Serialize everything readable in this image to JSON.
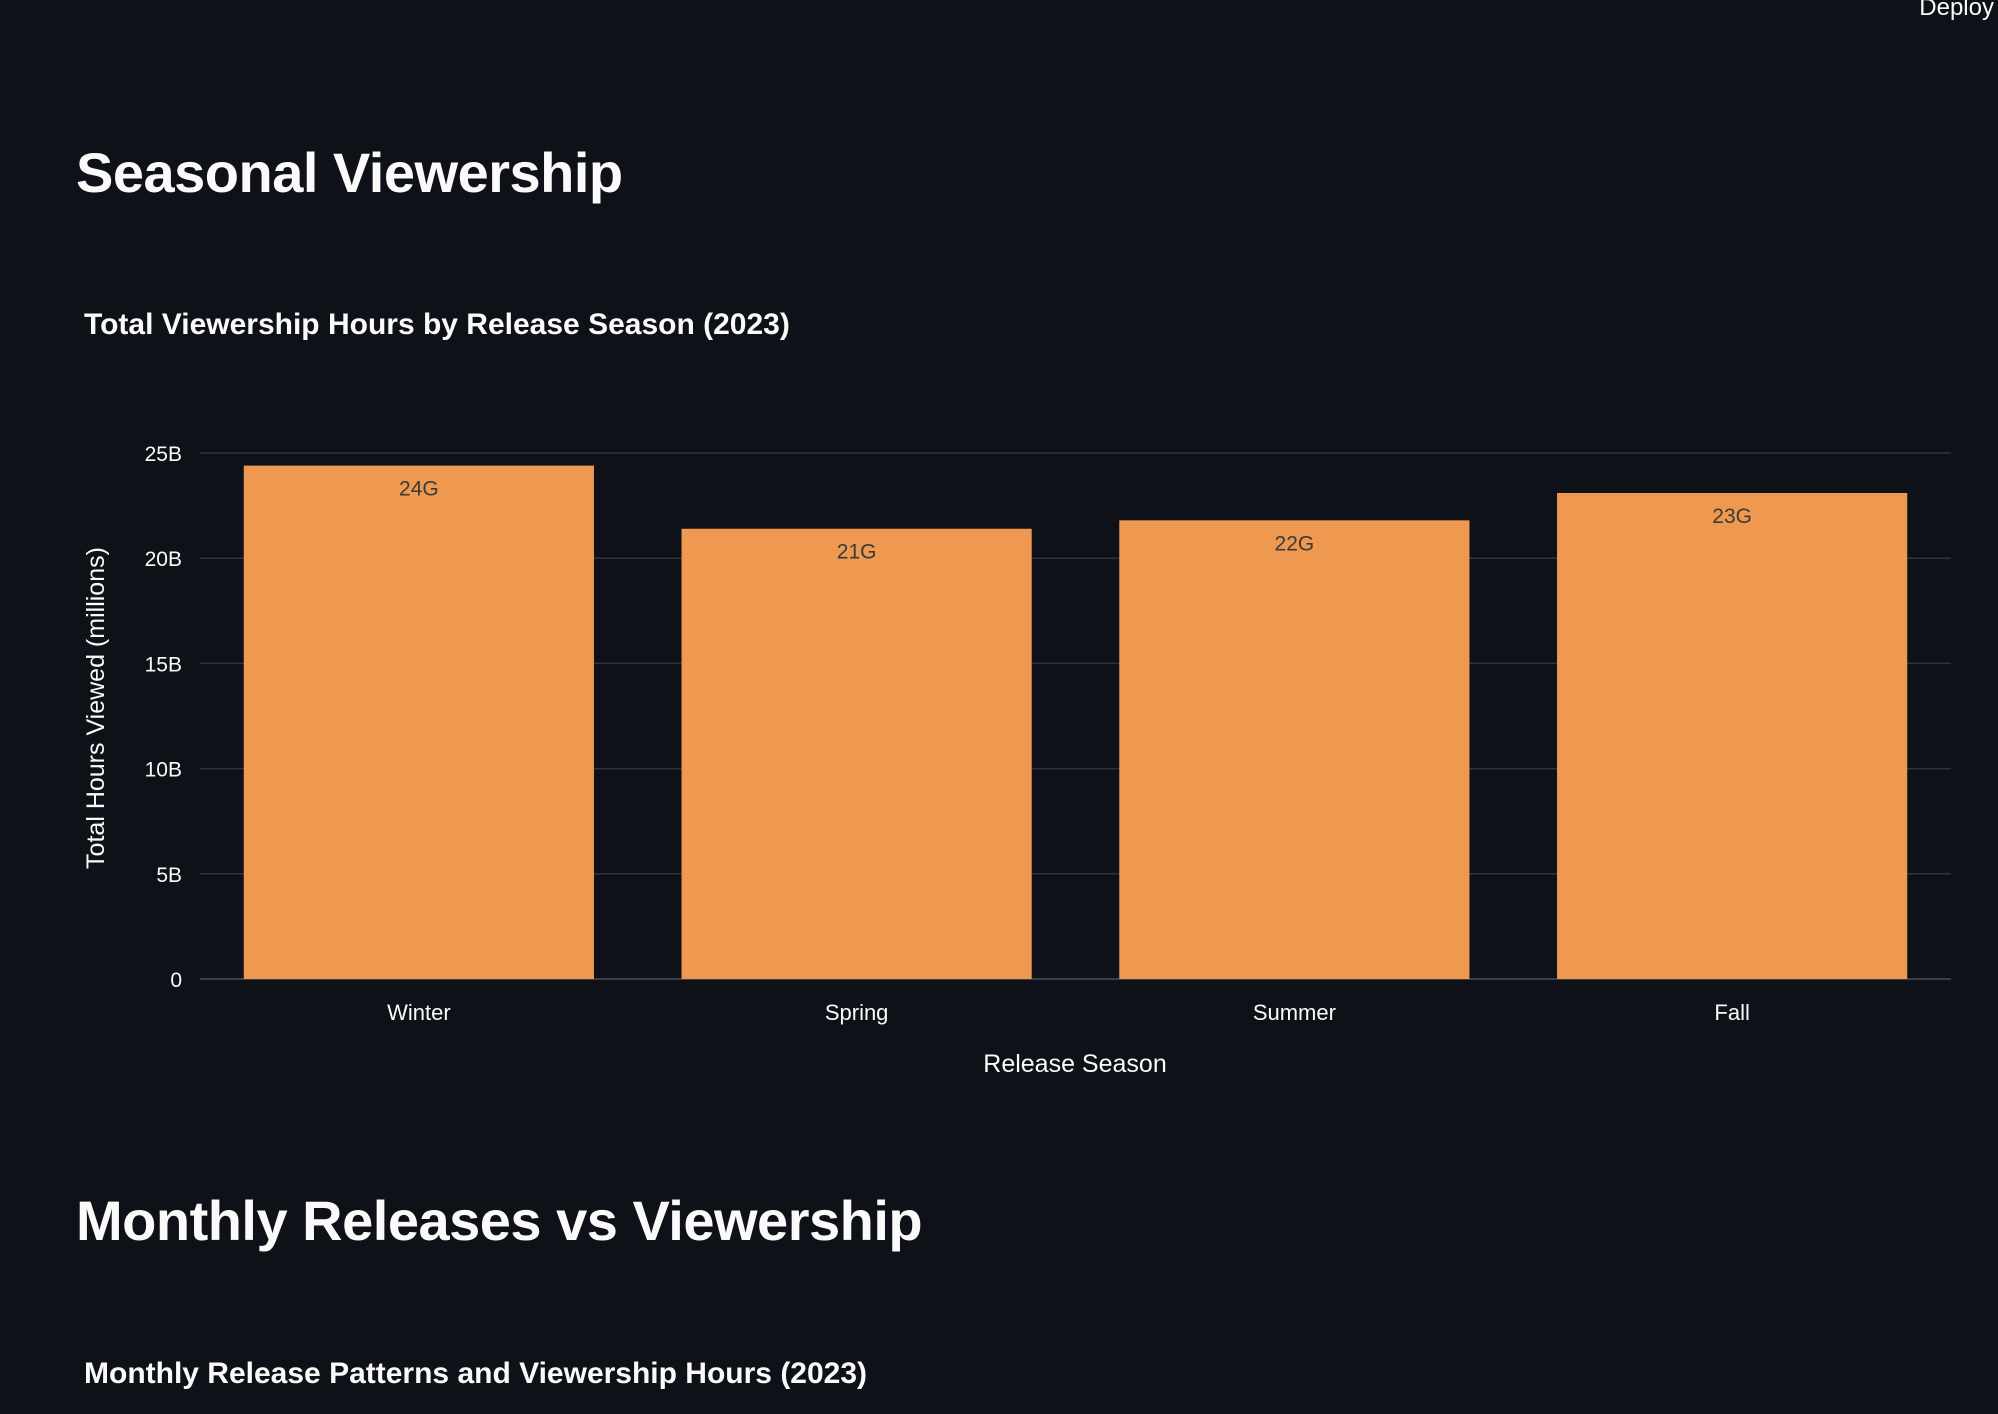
{
  "header": {
    "deploy_label": "Deploy"
  },
  "sections": {
    "seasonal": {
      "heading": "Seasonal Viewership"
    },
    "monthly": {
      "heading": "Monthly Releases vs Viewership",
      "chart_title": "Monthly Release Patterns and Viewership Hours (2023)"
    }
  },
  "colors": {
    "background": "#0e1117",
    "bar": "#ee9850",
    "gridline": "#31333f",
    "text": "#fafafa",
    "bar_label": "#3b3b3b"
  },
  "chart_data": {
    "type": "bar",
    "title": "Total Viewership Hours by Release Season (2023)",
    "xlabel": "Release Season",
    "ylabel": "Total Hours Viewed (millions)",
    "categories": [
      "Winter",
      "Spring",
      "Summer",
      "Fall"
    ],
    "values": [
      24400000000,
      21400000000,
      21800000000,
      23100000000
    ],
    "data_labels": [
      "24G",
      "21G",
      "22G",
      "23G"
    ],
    "ylim": [
      0,
      25000000000
    ],
    "yticks": [
      0,
      5000000000,
      10000000000,
      15000000000,
      20000000000,
      25000000000
    ],
    "ytick_labels": [
      "0",
      "5B",
      "10B",
      "15B",
      "20B",
      "25B"
    ],
    "grid": true,
    "legend": false
  }
}
